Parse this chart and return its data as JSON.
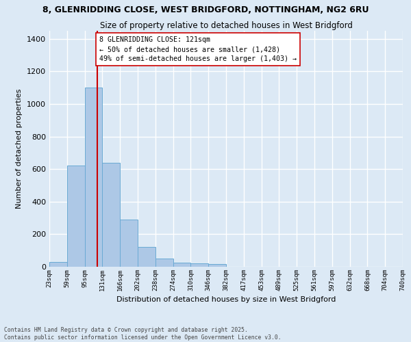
{
  "title1": "8, GLENRIDDING CLOSE, WEST BRIDGFORD, NOTTINGHAM, NG2 6RU",
  "title2": "Size of property relative to detached houses in West Bridgford",
  "xlabel": "Distribution of detached houses by size in West Bridgford",
  "ylabel": "Number of detached properties",
  "bar_color": "#adc8e6",
  "bar_edge_color": "#6aaad4",
  "bg_color": "#dce9f5",
  "grid_color": "#ffffff",
  "bin_labels": [
    "23sqm",
    "59sqm",
    "95sqm",
    "131sqm",
    "166sqm",
    "202sqm",
    "238sqm",
    "274sqm",
    "310sqm",
    "346sqm",
    "382sqm",
    "417sqm",
    "453sqm",
    "489sqm",
    "525sqm",
    "561sqm",
    "597sqm",
    "632sqm",
    "668sqm",
    "704sqm",
    "740sqm"
  ],
  "bar_heights": [
    30,
    620,
    1100,
    640,
    290,
    120,
    50,
    25,
    20,
    15,
    0,
    0,
    0,
    0,
    0,
    0,
    0,
    0,
    0,
    0
  ],
  "vline_x": 2.72,
  "vline_color": "#cc0000",
  "annotation_box_edge": "#cc0000",
  "annotation_box_face": "#ffffff",
  "annotation_text": "8 GLENRIDDING CLOSE: 121sqm\n← 50% of detached houses are smaller (1,428)\n49% of semi-detached houses are larger (1,403) →",
  "ylim": [
    0,
    1450
  ],
  "yticks": [
    0,
    200,
    400,
    600,
    800,
    1000,
    1200,
    1400
  ],
  "footnote1": "Contains HM Land Registry data © Crown copyright and database right 2025.",
  "footnote2": "Contains public sector information licensed under the Open Government Licence v3.0."
}
